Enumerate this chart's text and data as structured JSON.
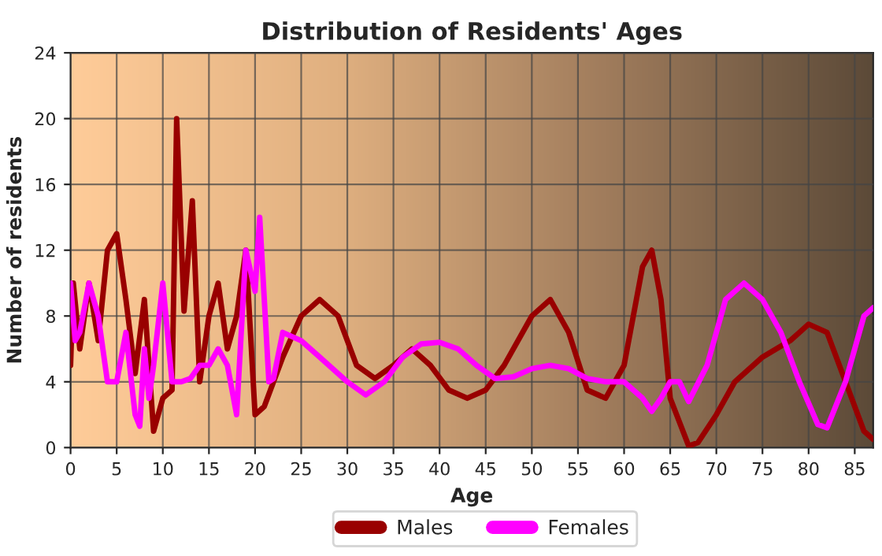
{
  "chart_data": {
    "type": "line",
    "title": "Distribution of Residents' Ages",
    "xlabel": "Age",
    "ylabel": "Number of residents",
    "xlim": [
      0,
      87
    ],
    "xticks": [
      0,
      5,
      10,
      15,
      20,
      25,
      30,
      35,
      40,
      45,
      50,
      55,
      60,
      65,
      70,
      75,
      80,
      85
    ],
    "ylim": [
      0,
      24
    ],
    "yticks": [
      0,
      4,
      8,
      12,
      16,
      20,
      24
    ],
    "grid": true,
    "legend": "bottom",
    "series": [
      {
        "name": "Males",
        "color": "#990000",
        "x": [
          0,
          0.3,
          1,
          2,
          3,
          4,
          5,
          6,
          7,
          8,
          9,
          10,
          11,
          11.5,
          12.3,
          13.2,
          14,
          15,
          16,
          17,
          18,
          19,
          20,
          21,
          23,
          25,
          27,
          29,
          31,
          33,
          35,
          37,
          39,
          41,
          43,
          45,
          47,
          50,
          52,
          54,
          56,
          58,
          60,
          62,
          63,
          64,
          65,
          67,
          68,
          70,
          72,
          75,
          78,
          80,
          82,
          84,
          86,
          87
        ],
        "values": [
          5,
          10,
          6,
          10,
          6.5,
          12,
          13,
          9,
          4.5,
          9,
          1,
          3,
          3.5,
          20,
          8.3,
          15,
          4,
          8,
          10,
          6,
          8,
          12,
          2,
          2.5,
          5.5,
          8,
          9,
          8,
          5,
          4.2,
          5,
          6,
          5,
          3.5,
          3,
          3.5,
          5,
          8,
          9,
          7,
          3.5,
          3,
          5,
          11,
          12,
          9,
          3,
          0.1,
          0.3,
          2,
          4,
          5.5,
          6.5,
          7.5,
          7,
          4,
          1,
          0.5
        ]
      },
      {
        "name": "Females",
        "color": "#ff00ff",
        "x": [
          0,
          0.5,
          1,
          2,
          3,
          4,
          5,
          6,
          7,
          7.5,
          8,
          8.5,
          9,
          10,
          11,
          12,
          13,
          14,
          15,
          16,
          17,
          18,
          19,
          20,
          20.5,
          21.5,
          22,
          23,
          25,
          27,
          30,
          32,
          34,
          36,
          38,
          40,
          42,
          44,
          46,
          48,
          50,
          52,
          54,
          56,
          58,
          60,
          62,
          63,
          64,
          65,
          66,
          67,
          69,
          71,
          73,
          75,
          77,
          79,
          81,
          82,
          84,
          86,
          87
        ],
        "values": [
          10,
          6.5,
          7,
          10,
          8,
          4,
          4,
          7,
          2,
          1.3,
          6,
          3,
          5,
          10,
          4,
          4,
          4.2,
          5,
          5,
          6,
          5,
          2,
          12,
          9.5,
          14,
          4,
          4.2,
          7,
          6.5,
          5.5,
          4,
          3.2,
          4,
          5.5,
          6.3,
          6.4,
          6,
          5,
          4.2,
          4.3,
          4.8,
          5,
          4.8,
          4.2,
          4,
          4,
          3,
          2.2,
          3,
          4,
          4,
          2.8,
          5,
          9,
          10,
          9,
          7,
          4,
          1.4,
          1.2,
          4,
          8,
          8.5
        ]
      }
    ]
  }
}
